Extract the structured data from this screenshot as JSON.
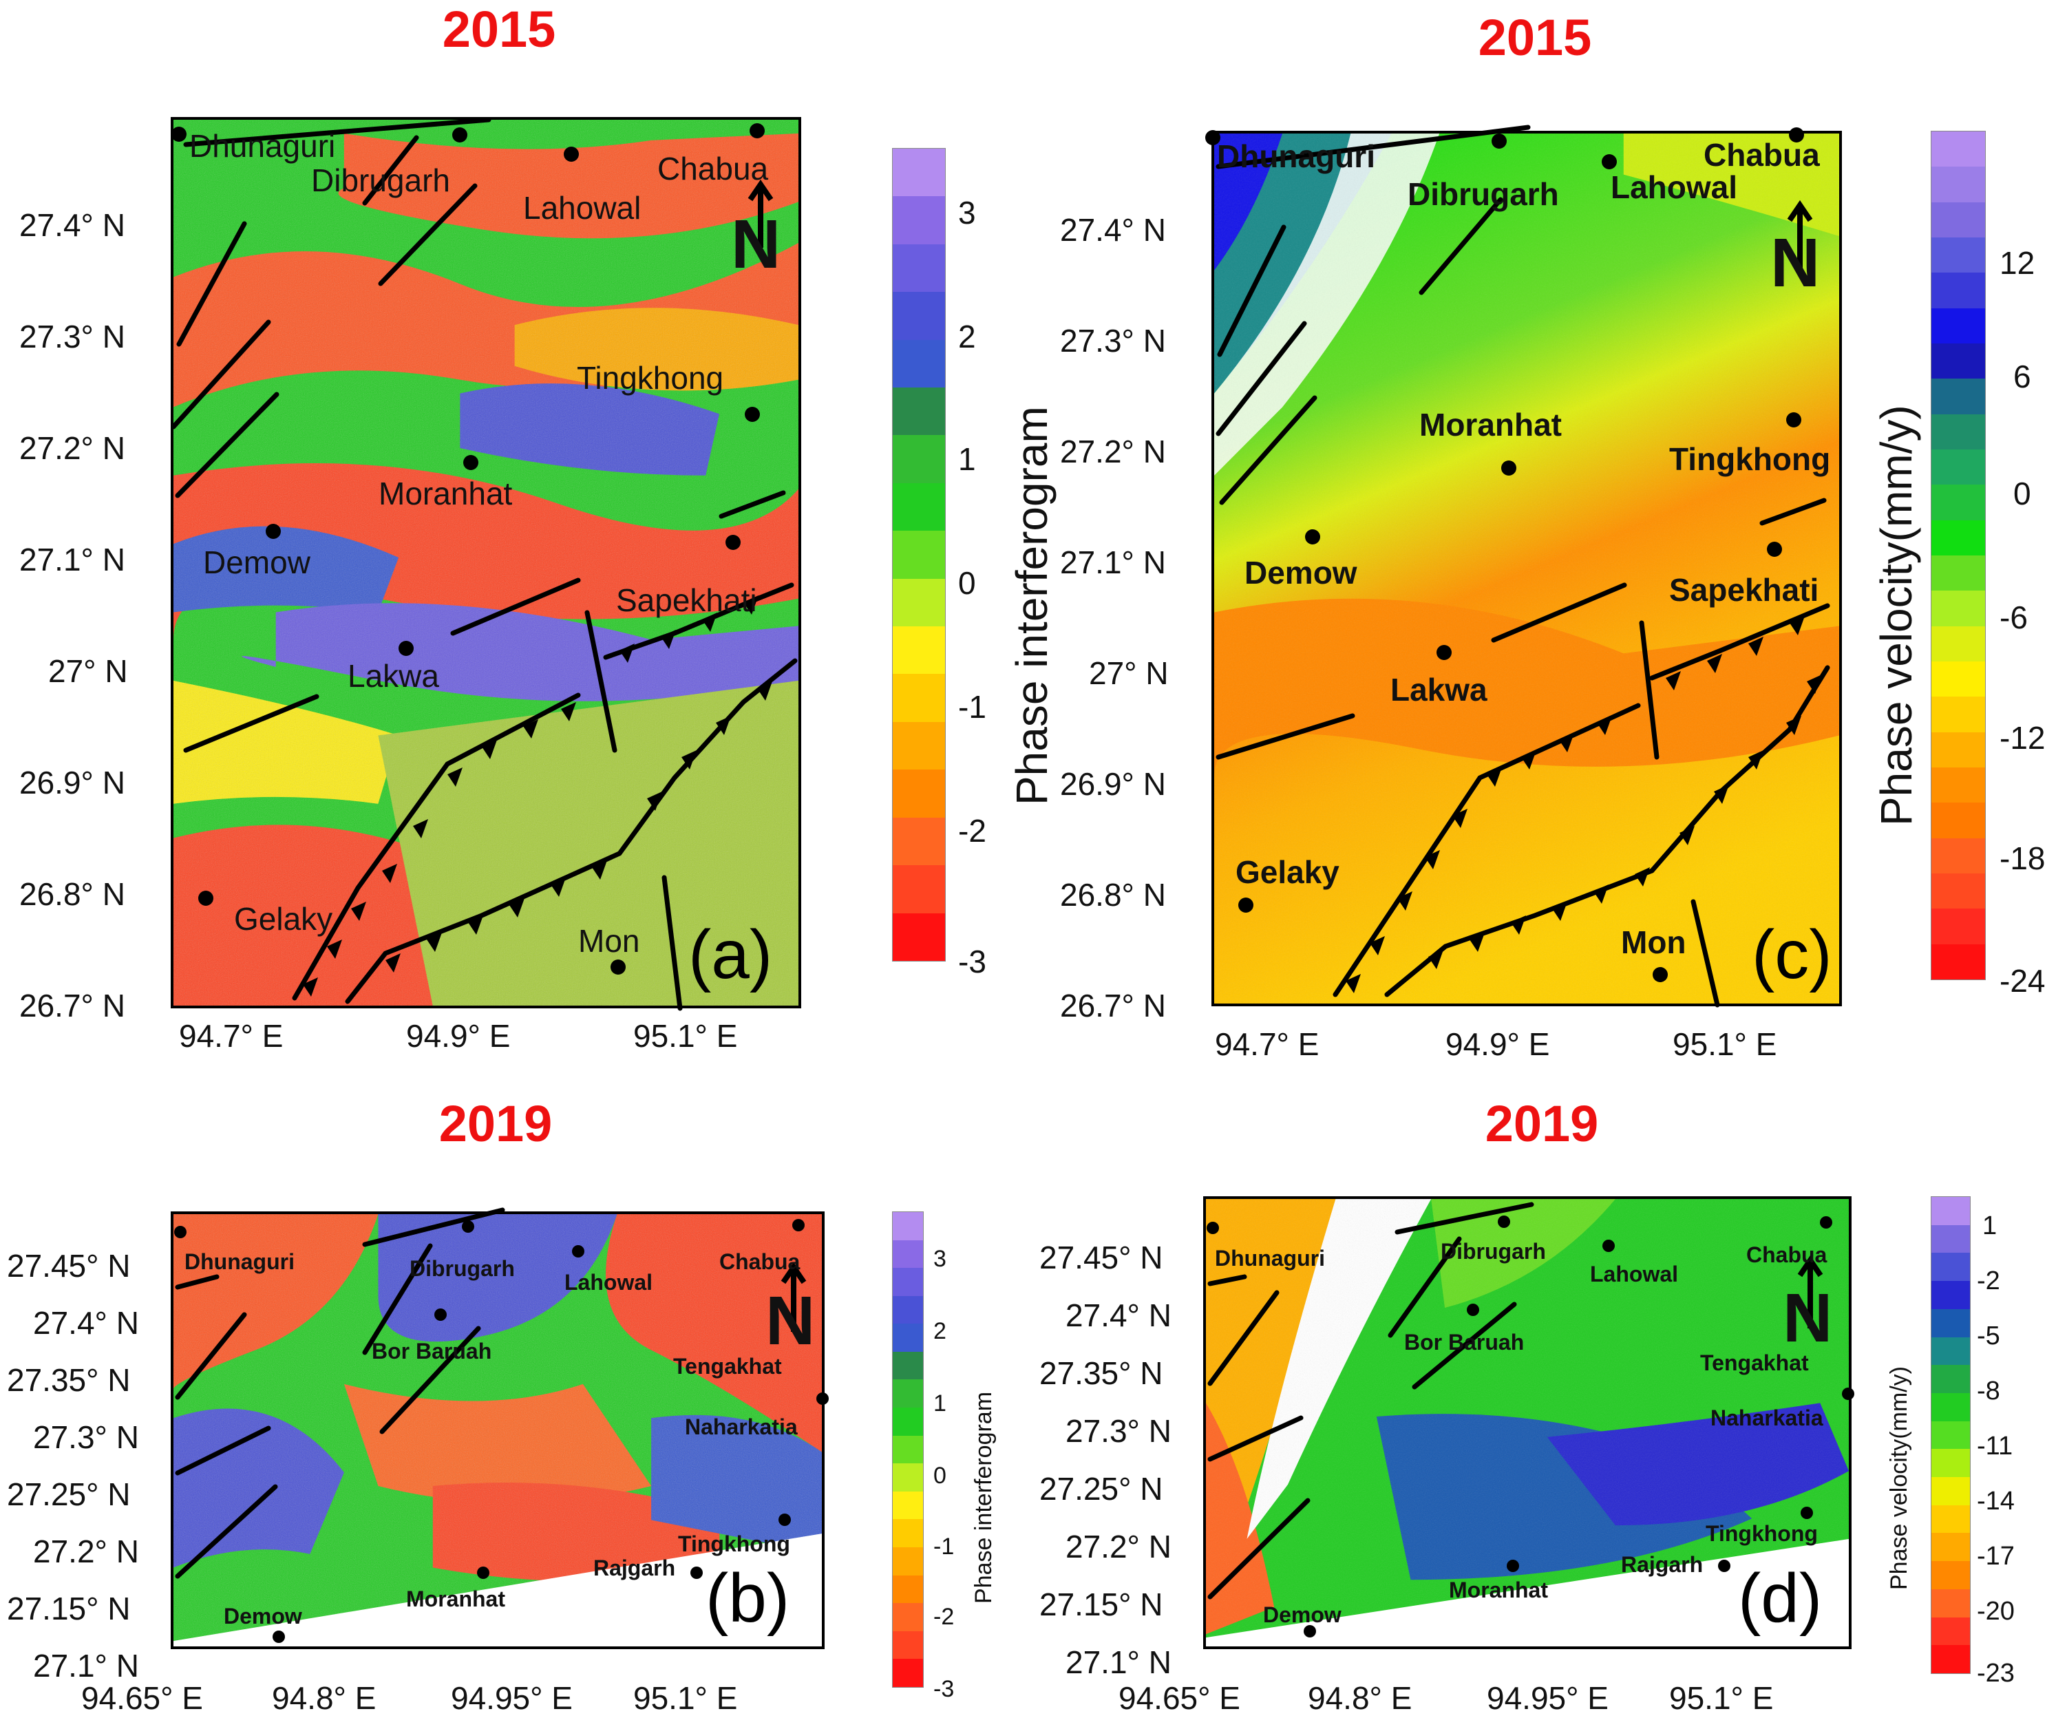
{
  "panels": {
    "a": {
      "year": "2015",
      "label": "(a)",
      "cities": [
        "Dhunaguri",
        "Dibrugarh",
        "Lahowal",
        "Chabua",
        "Tingkhong",
        "Moranhat",
        "Demow",
        "Sapekhati",
        "Lakwa",
        "Gelaky",
        "Mon"
      ],
      "yticks": [
        "27.4° N",
        "27.3° N",
        "27.2° N",
        "27.1° N",
        "27° N",
        "26.9° N",
        "26.8° N",
        "26.7° N"
      ],
      "xticks": [
        "94.7° E",
        "94.9° E",
        "95.1° E"
      ],
      "colorbar": {
        "title": "Phase interferogram",
        "ticks": [
          "3",
          "2",
          "1",
          "0",
          "-1",
          "-2",
          "-3"
        ]
      }
    },
    "b": {
      "year": "2019",
      "label": "(b)",
      "cities": [
        "Dhunaguri",
        "Dibrugarh",
        "Lahowal",
        "Chabua",
        "Bor Baruah",
        "Tengakhat",
        "Naharkatia",
        "Tingkhong",
        "Rajgarh",
        "Moranhat",
        "Demow"
      ],
      "yticks": [
        "27.45° N",
        "27.4° N",
        "27.35° N",
        "27.3° N",
        "27.25° N",
        "27.2° N",
        "27.15° N",
        "27.1° N"
      ],
      "xticks": [
        "94.65° E",
        "94.8° E",
        "94.95° E",
        "95.1° E"
      ],
      "colorbar": {
        "title": "Phase interferogram",
        "ticks": [
          "3",
          "2",
          "1",
          "0",
          "-1",
          "-2",
          "-3"
        ]
      }
    },
    "c": {
      "year": "2015",
      "label": "(c)",
      "cities": [
        "Dhunaguri",
        "Dibrugarh",
        "Lahowal",
        "Chabua",
        "Moranhat",
        "Tingkhong",
        "Demow",
        "Sapekhati",
        "Lakwa",
        "Gelaky",
        "Mon"
      ],
      "yticks": [
        "27.4° N",
        "27.3° N",
        "27.2° N",
        "27.1° N",
        "27° N",
        "26.9° N",
        "26.8° N",
        "26.7° N"
      ],
      "xticks": [
        "94.7° E",
        "94.9° E",
        "95.1° E"
      ],
      "colorbar": {
        "title": "Phase velocity(mm/y)",
        "ticks": [
          "12",
          "6",
          "0",
          "-6",
          "-12",
          "-18",
          "-24"
        ]
      }
    },
    "d": {
      "year": "2019",
      "label": "(d)",
      "cities": [
        "Dhunaguri",
        "Dibrugarh",
        "Lahowal",
        "Chabua",
        "Bor Baruah",
        "Tengakhat",
        "Naharkatia",
        "Tingkhong",
        "Rajgarh",
        "Moranhat",
        "Demow"
      ],
      "yticks": [
        "27.45° N",
        "27.4° N",
        "27.35° N",
        "27.3° N",
        "27.25° N",
        "27.2° N",
        "27.15° N",
        "27.1° N"
      ],
      "xticks": [
        "94.65° E",
        "94.8° E",
        "94.95° E",
        "95.1° E"
      ],
      "colorbar": {
        "title": "Phase velocity(mm/y)",
        "ticks": [
          "1",
          "-2",
          "-5",
          "-8",
          "-11",
          "-14",
          "-17",
          "-20",
          "-23"
        ]
      }
    }
  },
  "north_arrow": "N",
  "colors": {
    "year_title": "#ee1111",
    "interferogram_scale": [
      "#b38cf0",
      "#8a6ae6",
      "#6a5de0",
      "#4a52d6",
      "#3a5ad0",
      "#2a8a4a",
      "#33bb33",
      "#22cc22",
      "#66dd22",
      "#bbee22",
      "#ffee11",
      "#ffcc00",
      "#ffaa00",
      "#ff8800",
      "#ff6622",
      "#ff4422",
      "#ff1111"
    ],
    "velocity_scale_c": [
      "#b38cf0",
      "#9b7ee8",
      "#7f6be0",
      "#5a5adc",
      "#3a3ad8",
      "#1414e8",
      "#1818b8",
      "#1a6a8a",
      "#1f8f6a",
      "#1fa860",
      "#22c03c",
      "#11dd11",
      "#66dd22",
      "#aaee22",
      "#ddee11",
      "#ffee00",
      "#ffd000",
      "#ffb000",
      "#ff9000",
      "#ff7a00",
      "#ff6020",
      "#ff4a20",
      "#ff2a20",
      "#ff1010"
    ],
    "velocity_scale_d": [
      "#b38cf0",
      "#7c6ae0",
      "#4a52d6",
      "#2828d0",
      "#1a5ab0",
      "#1a8a8a",
      "#22aa44",
      "#22cc22",
      "#55dd22",
      "#aaee11",
      "#eeee00",
      "#ffcc00",
      "#ffaa00",
      "#ff8800",
      "#ff6622",
      "#ff3322",
      "#ff1111"
    ]
  }
}
